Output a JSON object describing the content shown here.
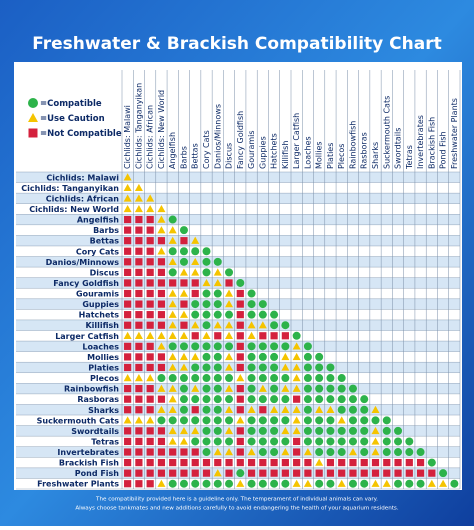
{
  "title": "Freshwater & Brackish Compatibility Chart",
  "legend": [
    {
      "label": "=Compatible",
      "color": "#2db34a",
      "shape": "circle"
    },
    {
      "label": "=Use Caution",
      "color": "#f5c400",
      "shape": "triangle"
    },
    {
      "label": "=Not Compatible",
      "color": "#d4213d",
      "shape": "square"
    }
  ],
  "species": [
    "Cichlids: Malawi",
    "Cichlids: Tanganyikan",
    "Cichlids: African",
    "Cichlids: New World",
    "Angelfish",
    "Barbs",
    "Bettas",
    "Cory Cats",
    "Danios/Minnows",
    "Discus",
    "Fancy Goldfish",
    "Gouramis",
    "Guppies",
    "Hatchets",
    "Killifish",
    "Larger Catfish",
    "Loaches",
    "Mollies",
    "Platies",
    "Plecos",
    "Rainbowfish",
    "Rasboras",
    "Sharks",
    "Suckermouth Cats",
    "Swordtails",
    "Tetras",
    "Invertebrates",
    "Brackish Fish",
    "Pond Fish",
    "Freshwater Plants"
  ],
  "rows": [
    [
      1
    ],
    [
      1,
      1
    ],
    [
      1,
      1,
      1
    ],
    [
      1,
      1,
      1,
      1
    ],
    [
      2,
      2,
      2,
      1,
      0
    ],
    [
      2,
      2,
      2,
      1,
      1,
      0
    ],
    [
      2,
      2,
      2,
      2,
      1,
      2,
      1
    ],
    [
      2,
      2,
      2,
      1,
      0,
      0,
      0,
      0
    ],
    [
      2,
      2,
      2,
      2,
      1,
      0,
      1,
      0,
      0
    ],
    [
      2,
      2,
      2,
      2,
      0,
      1,
      1,
      0,
      1,
      0
    ],
    [
      2,
      2,
      2,
      2,
      2,
      2,
      2,
      1,
      1,
      2,
      0
    ],
    [
      2,
      2,
      2,
      2,
      1,
      1,
      2,
      0,
      0,
      1,
      2,
      0
    ],
    [
      2,
      2,
      2,
      2,
      1,
      2,
      0,
      0,
      0,
      1,
      2,
      0,
      0
    ],
    [
      2,
      2,
      2,
      2,
      1,
      1,
      0,
      0,
      0,
      0,
      2,
      0,
      0,
      0
    ],
    [
      2,
      2,
      2,
      2,
      1,
      2,
      1,
      0,
      1,
      1,
      2,
      1,
      1,
      0,
      0
    ],
    [
      1,
      1,
      1,
      1,
      1,
      1,
      2,
      1,
      2,
      1,
      2,
      1,
      2,
      2,
      2,
      0
    ],
    [
      2,
      2,
      2,
      1,
      0,
      0,
      0,
      0,
      0,
      0,
      2,
      0,
      0,
      0,
      0,
      1,
      0
    ],
    [
      2,
      2,
      2,
      2,
      1,
      1,
      1,
      0,
      0,
      1,
      2,
      0,
      0,
      0,
      1,
      1,
      0,
      0
    ],
    [
      2,
      2,
      2,
      2,
      1,
      1,
      0,
      0,
      0,
      1,
      2,
      0,
      0,
      0,
      1,
      1,
      0,
      0,
      0
    ],
    [
      1,
      1,
      1,
      0,
      0,
      0,
      0,
      0,
      0,
      0,
      1,
      0,
      0,
      0,
      0,
      1,
      0,
      0,
      0,
      0
    ],
    [
      2,
      2,
      2,
      1,
      1,
      0,
      1,
      0,
      0,
      1,
      2,
      0,
      1,
      0,
      1,
      1,
      0,
      0,
      0,
      0,
      0
    ],
    [
      2,
      2,
      2,
      2,
      1,
      0,
      0,
      0,
      0,
      0,
      2,
      0,
      0,
      0,
      0,
      2,
      0,
      0,
      0,
      0,
      0,
      0
    ],
    [
      2,
      2,
      2,
      1,
      1,
      0,
      2,
      0,
      0,
      1,
      2,
      1,
      2,
      1,
      1,
      1,
      0,
      1,
      1,
      0,
      0,
      0,
      1
    ],
    [
      1,
      1,
      1,
      0,
      0,
      0,
      0,
      0,
      0,
      0,
      1,
      0,
      0,
      0,
      0,
      1,
      0,
      0,
      0,
      1,
      0,
      0,
      0,
      0
    ],
    [
      2,
      2,
      2,
      2,
      1,
      1,
      1,
      0,
      0,
      1,
      2,
      0,
      0,
      0,
      1,
      1,
      0,
      0,
      0,
      0,
      0,
      0,
      1,
      0,
      0
    ],
    [
      2,
      2,
      2,
      2,
      1,
      1,
      0,
      0,
      0,
      0,
      2,
      0,
      0,
      0,
      0,
      2,
      0,
      0,
      0,
      0,
      0,
      0,
      1,
      0,
      0,
      0
    ],
    [
      2,
      2,
      2,
      2,
      2,
      2,
      2,
      0,
      1,
      1,
      2,
      1,
      0,
      0,
      1,
      2,
      1,
      0,
      0,
      0,
      1,
      0,
      1,
      0,
      0,
      0,
      0
    ],
    [
      2,
      2,
      2,
      2,
      2,
      2,
      2,
      2,
      2,
      2,
      2,
      2,
      2,
      2,
      2,
      2,
      2,
      1,
      2,
      2,
      2,
      2,
      2,
      2,
      2,
      2,
      2,
      0
    ],
    [
      2,
      2,
      2,
      2,
      2,
      2,
      2,
      2,
      1,
      2,
      0,
      2,
      2,
      2,
      2,
      2,
      2,
      2,
      2,
      2,
      2,
      2,
      2,
      2,
      2,
      2,
      2,
      2,
      0
    ],
    [
      2,
      2,
      2,
      1,
      0,
      0,
      0,
      0,
      0,
      0,
      1,
      0,
      0,
      0,
      0,
      1,
      1,
      0,
      0,
      1,
      0,
      0,
      1,
      1,
      0,
      0,
      0,
      1,
      1,
      0
    ]
  ],
  "footer": [
    "The compatibility provided here is a guideline only. The temperament of individual animals can vary.",
    "Always choose tankmates and new additions carefully to avoid endangering the health of your aquarium residents."
  ]
}
